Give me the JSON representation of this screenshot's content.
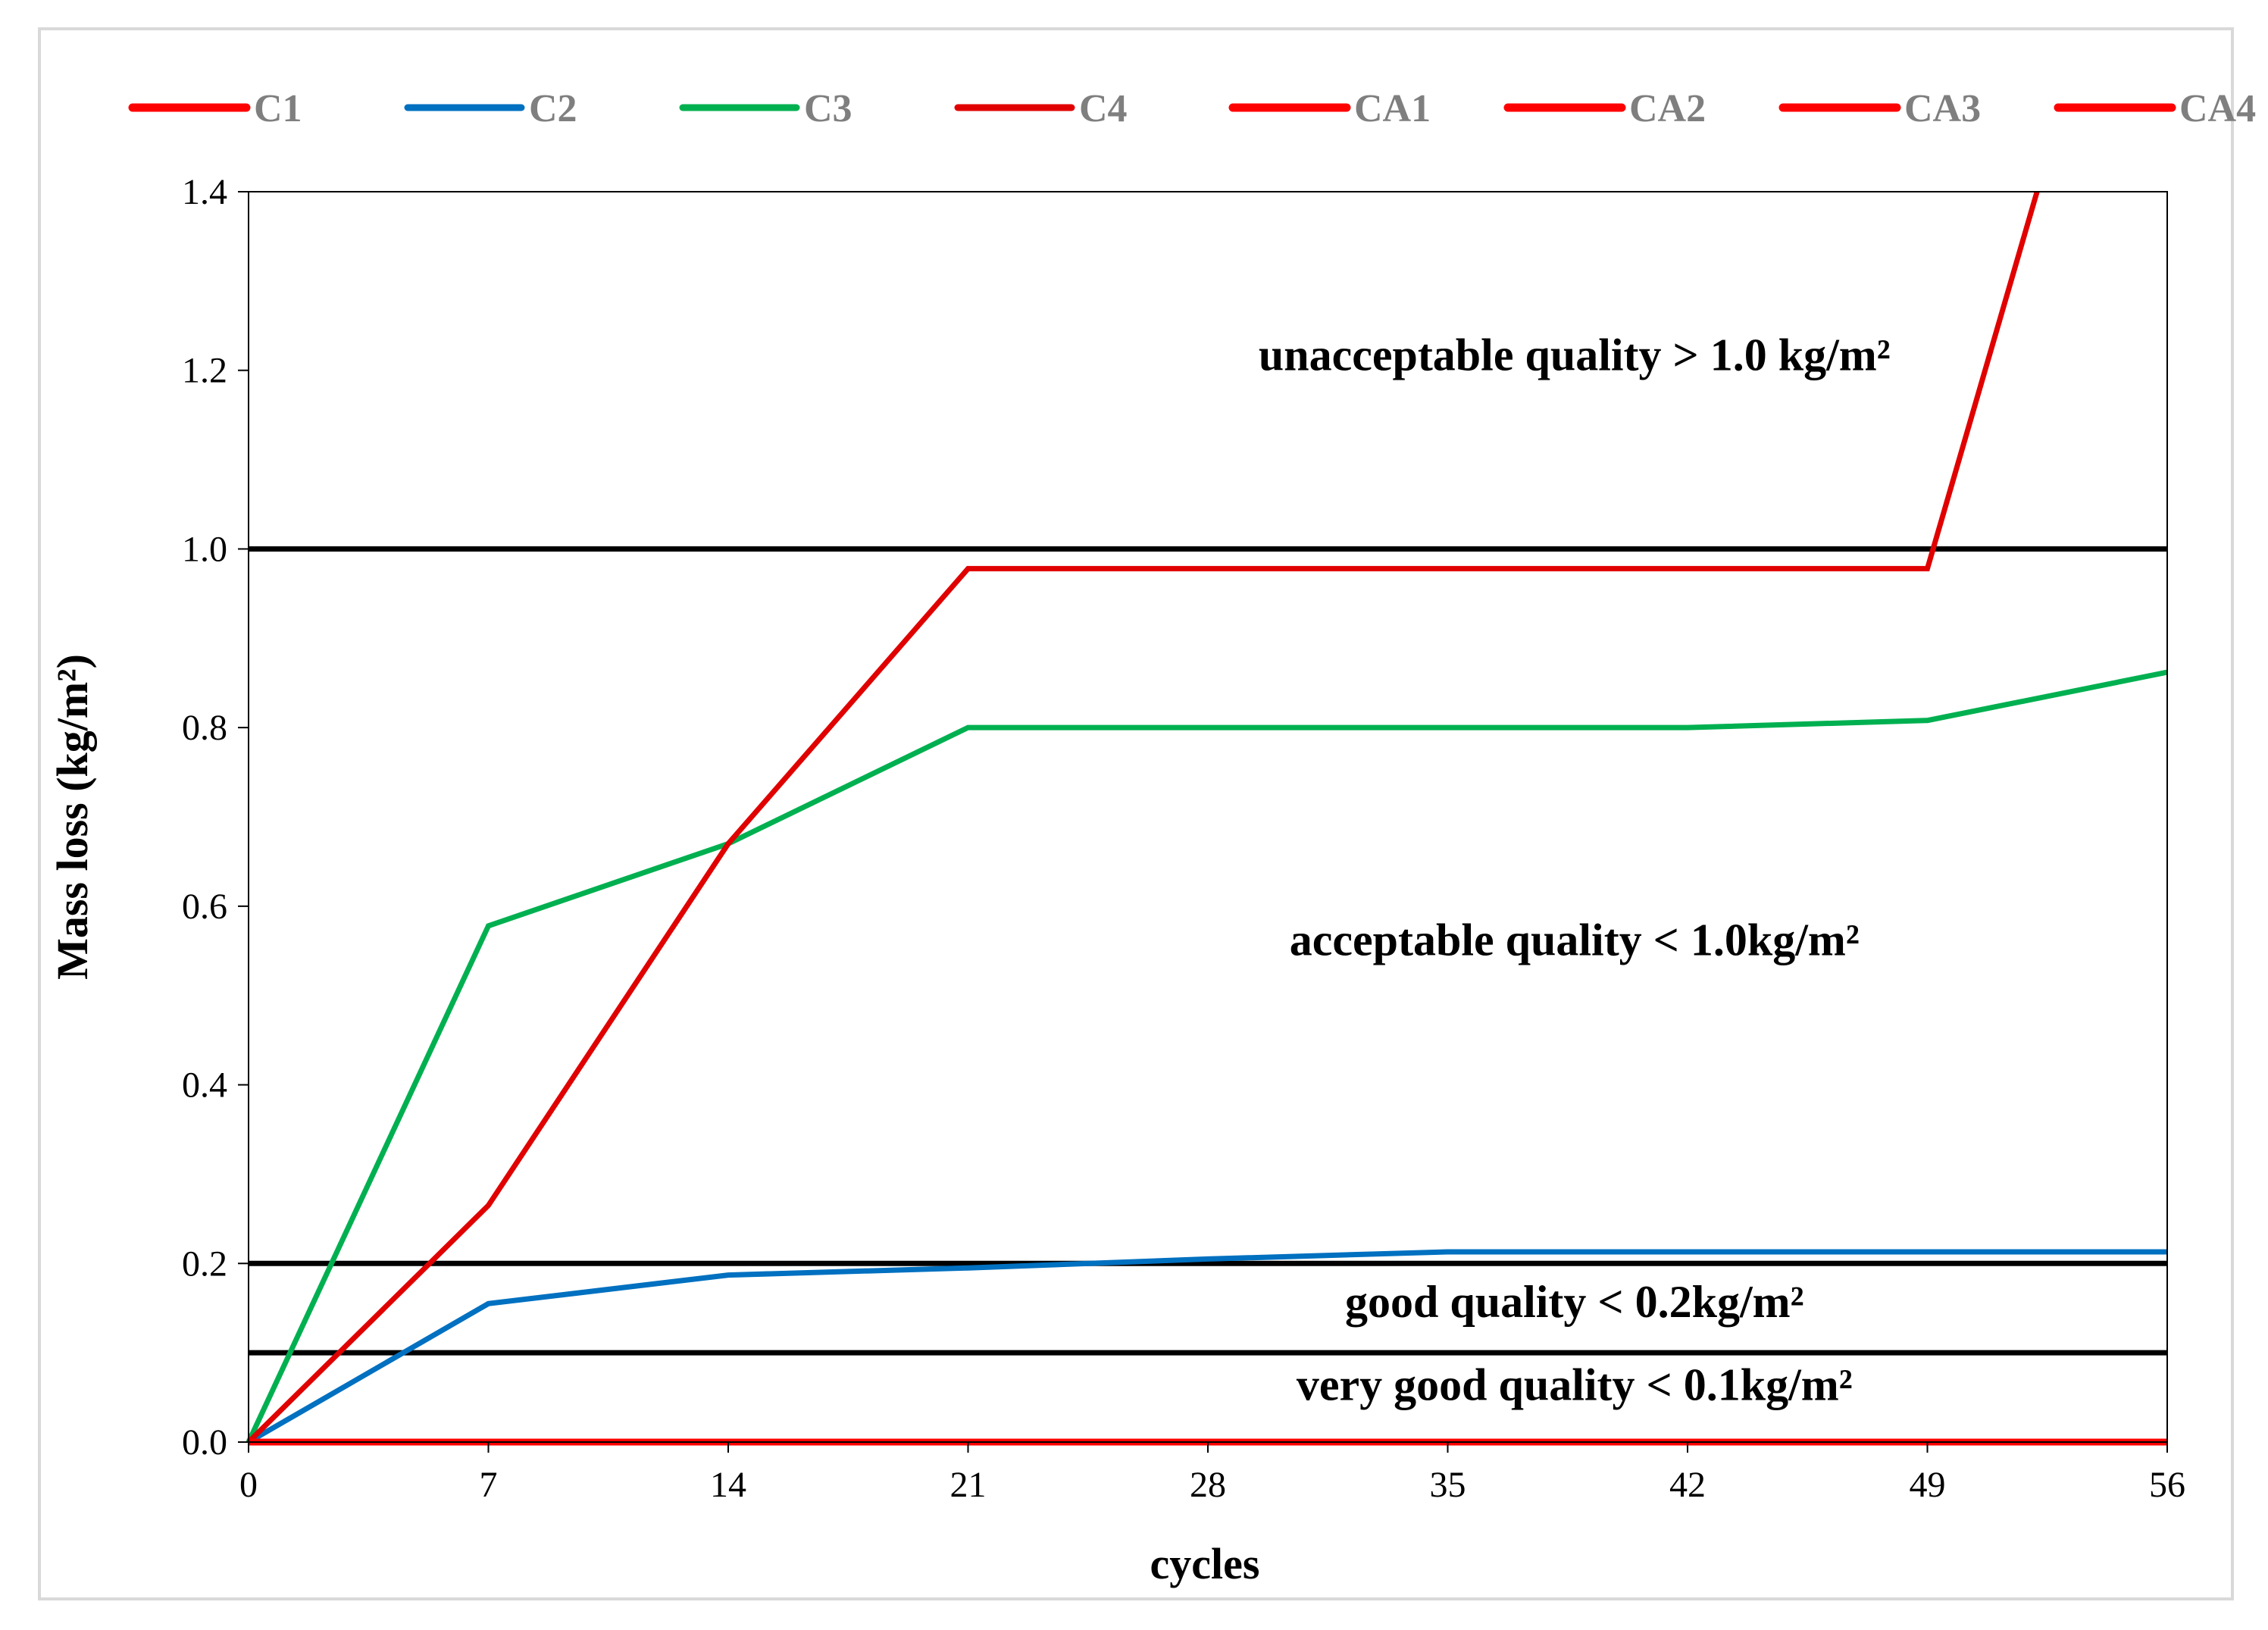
{
  "chart_data": {
    "type": "line",
    "title": "",
    "xlabel": "cycles",
    "ylabel": "Mass loss (kg/m²)",
    "xlim": [
      0,
      56
    ],
    "ylim": [
      0,
      1.4
    ],
    "x_ticks": [
      0,
      7,
      14,
      21,
      28,
      35,
      42,
      49,
      56
    ],
    "y_ticks": [
      "0.0",
      "0.2",
      "0.4",
      "0.6",
      "0.8",
      "1.0",
      "1.2",
      "1.4"
    ],
    "legend_position": "top",
    "grid": false,
    "x": [
      0,
      7,
      14,
      21,
      28,
      35,
      42,
      49,
      56
    ],
    "series": [
      {
        "name": "C1",
        "color": "#ff0000",
        "width": "thick",
        "values": [
          0,
          0,
          0,
          0,
          0,
          0,
          0,
          0,
          0
        ]
      },
      {
        "name": "C2",
        "color": "#0070c0",
        "width": "normal",
        "values": [
          0,
          0.155,
          0.187,
          0.195,
          0.205,
          0.213,
          0.213,
          0.213,
          0.213
        ]
      },
      {
        "name": "C3",
        "color": "#00b050",
        "width": "normal",
        "values": [
          0,
          0.578,
          0.67,
          0.8,
          0.8,
          0.8,
          0.8,
          0.808,
          0.862
        ]
      },
      {
        "name": "C4",
        "color": "#e00000",
        "width": "normal",
        "values": [
          0,
          0.265,
          0.67,
          0.978,
          0.978,
          0.978,
          0.978,
          0.978,
          null
        ],
        "extra_points": [
          [
            52.2,
            1.4
          ]
        ]
      },
      {
        "name": "CA1",
        "color": "#ff0000",
        "width": "thick",
        "values": [
          0,
          0,
          0,
          0,
          0,
          0,
          0,
          0,
          0
        ]
      },
      {
        "name": "CA2",
        "color": "#ff0000",
        "width": "thick",
        "values": [
          0,
          0,
          0,
          0,
          0,
          0,
          0,
          0,
          0
        ]
      },
      {
        "name": "CA3",
        "color": "#ff0000",
        "width": "thick",
        "values": [
          0,
          0,
          0,
          0,
          0,
          0,
          0,
          0,
          0
        ]
      },
      {
        "name": "CA4",
        "color": "#ff0000",
        "width": "thick",
        "values": [
          0,
          0,
          0,
          0,
          0,
          0,
          0,
          0,
          0
        ]
      }
    ],
    "threshold_lines": [
      {
        "y": 1.0,
        "color": "#000000"
      },
      {
        "y": 0.2,
        "color": "#000000"
      },
      {
        "y": 0.1,
        "color": "#000000"
      }
    ],
    "annotations": [
      {
        "text": "unacceptable quality > 1.0 kg/m²",
        "x": 38.7,
        "y": 1.2
      },
      {
        "text": "acceptable quality < 1.0kg/m²",
        "x": 38.7,
        "y": 0.545
      },
      {
        "text": "good quality < 0.2kg/m²",
        "x": 38.7,
        "y": 0.14
      },
      {
        "text": "very good quality < 0.1kg/m²",
        "x": 38.7,
        "y": 0.047
      }
    ]
  }
}
